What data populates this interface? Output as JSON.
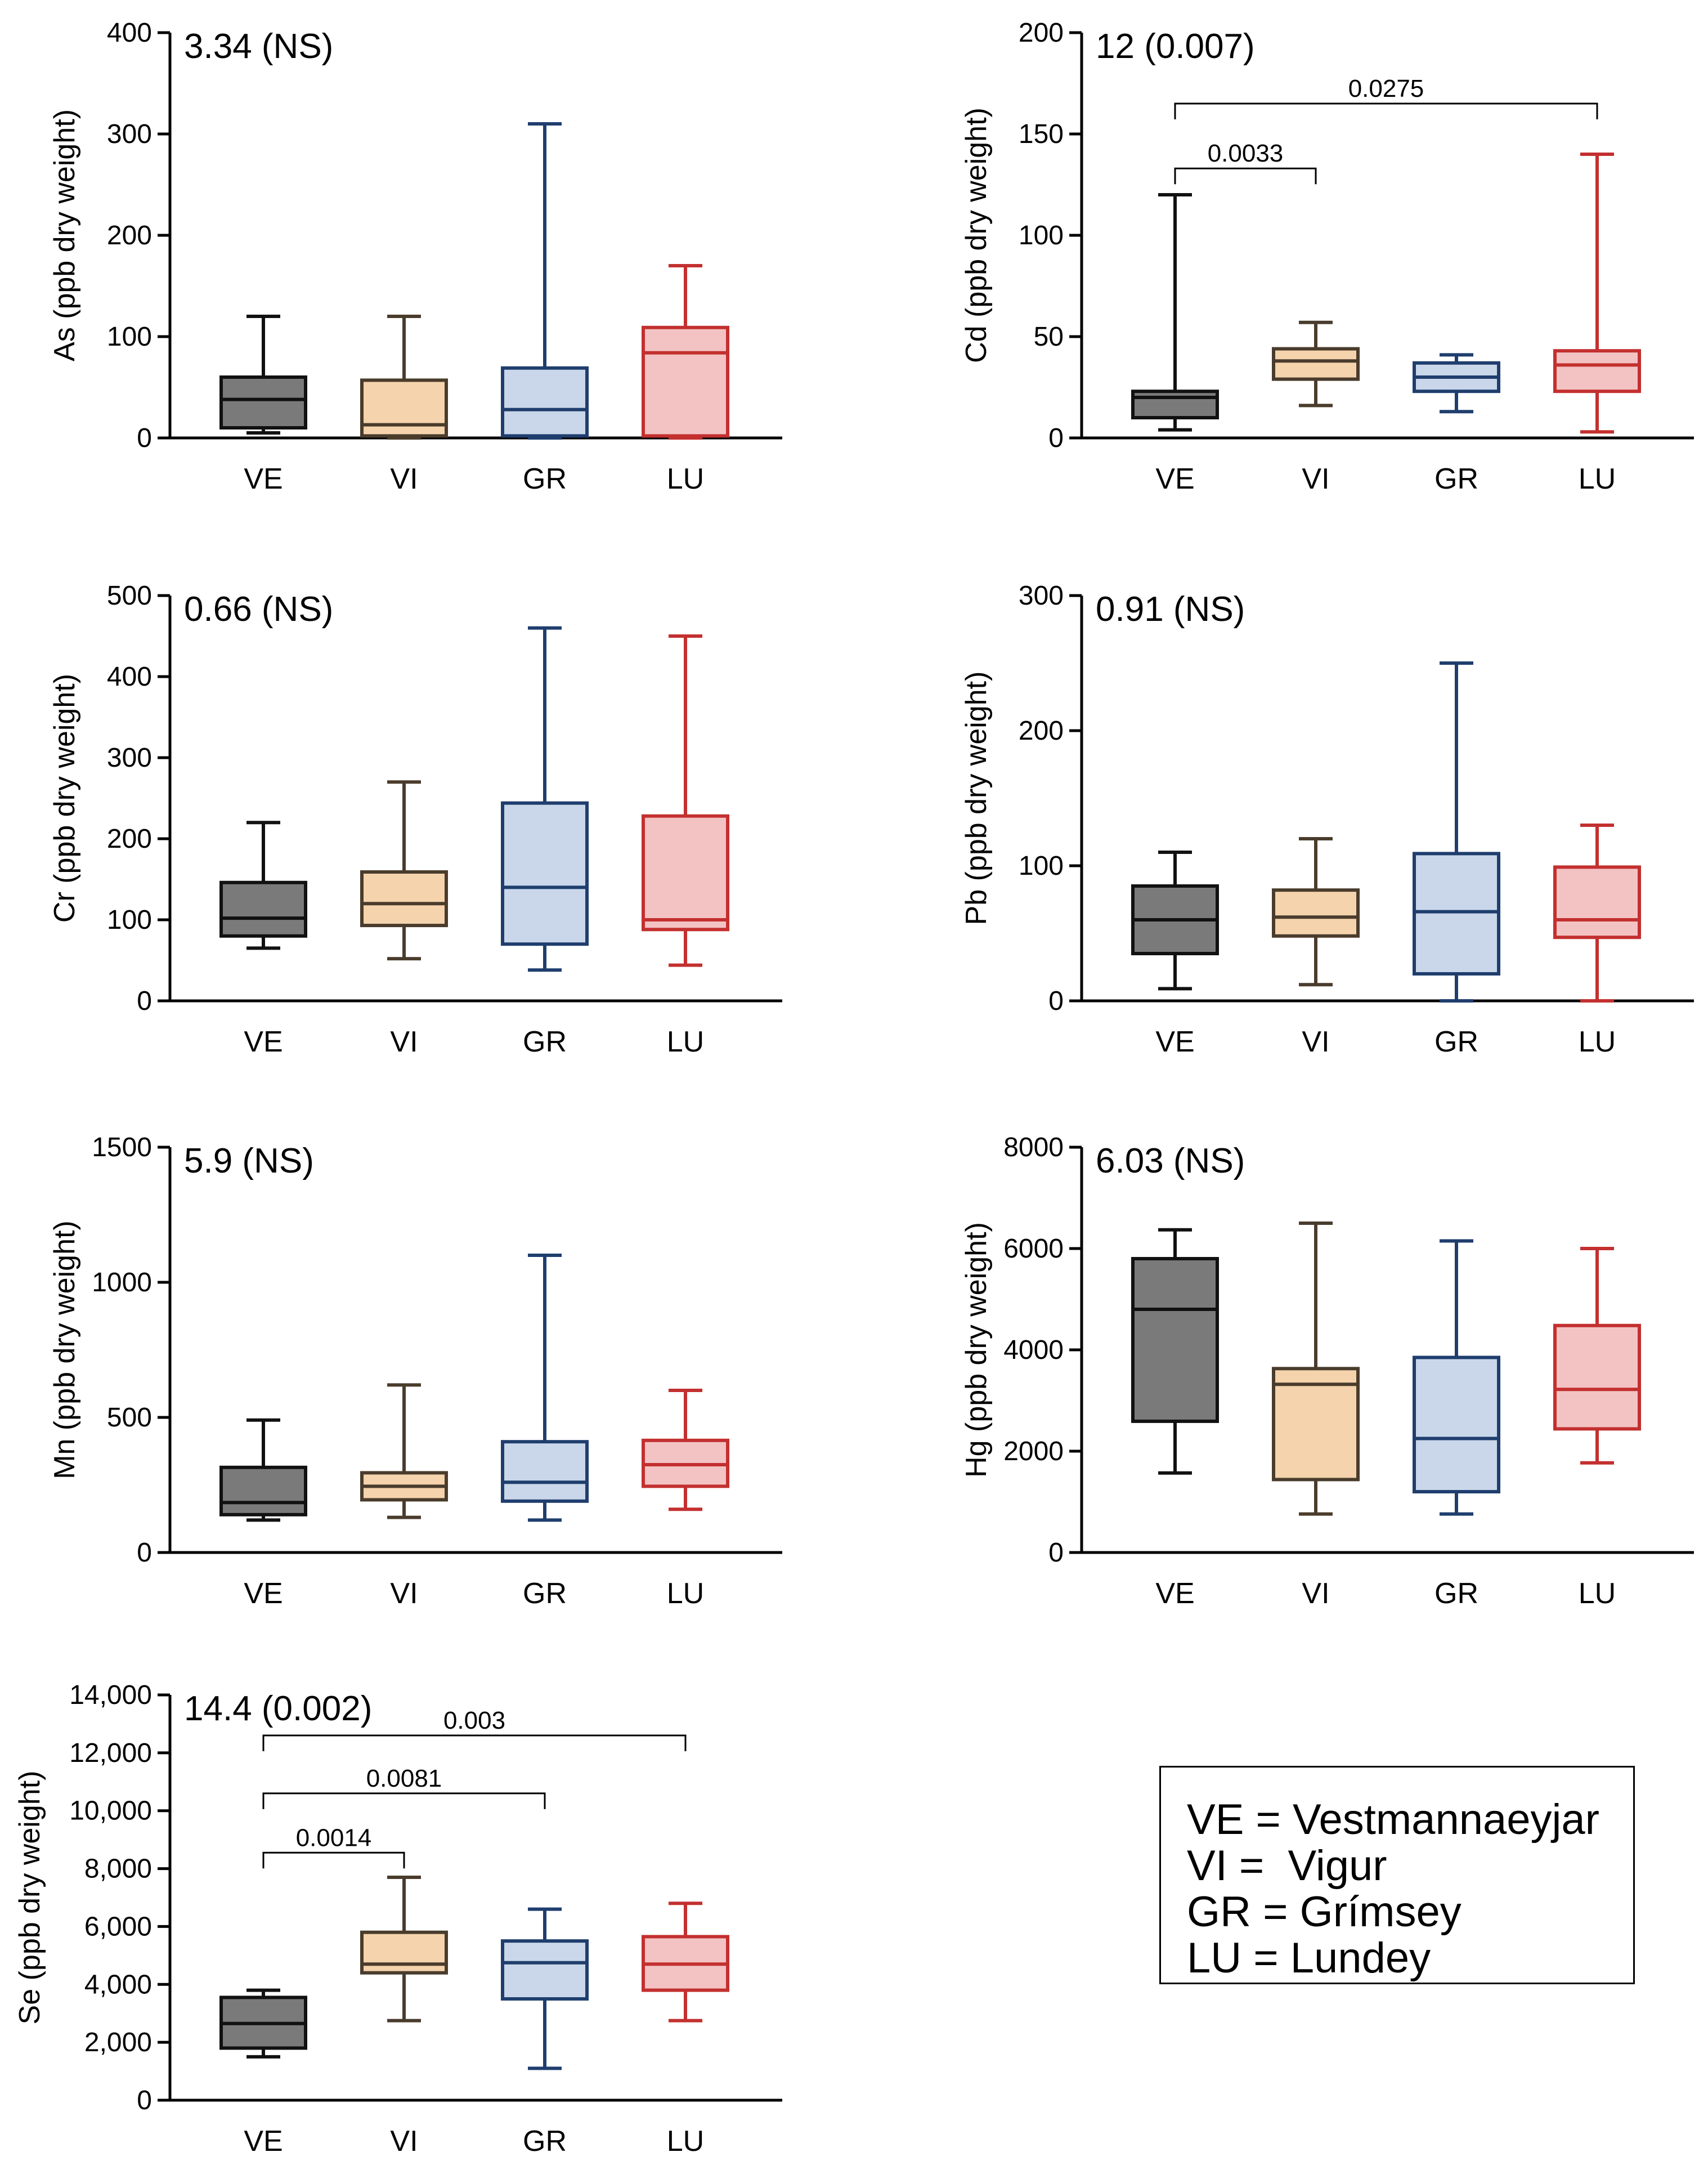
{
  "chart_data": [
    {
      "type": "box",
      "id": "as",
      "ylabel": "As (ppb dry weight)",
      "stat_label": "3.34 (NS)",
      "ylim": [
        0,
        400
      ],
      "yticks": [
        0,
        100,
        200,
        300,
        400
      ],
      "ytick_labels": [
        "0",
        "100",
        "200",
        "300",
        "400"
      ],
      "categories": [
        "VE",
        "VI",
        "GR",
        "LU"
      ],
      "boxes": [
        {
          "min": 5,
          "q1": 10,
          "median": 38,
          "q3": 60,
          "max": 120
        },
        {
          "min": 0,
          "q1": 2,
          "median": 13,
          "q3": 57,
          "max": 120
        },
        {
          "min": 0,
          "q1": 2,
          "median": 28,
          "q3": 69,
          "max": 310
        },
        {
          "min": 0,
          "q1": 2,
          "median": 84,
          "q3": 109,
          "max": 170
        }
      ],
      "comparisons": []
    },
    {
      "type": "box",
      "id": "cd",
      "ylabel": "Cd (ppb dry weight)",
      "stat_label": "12 (0.007)",
      "ylim": [
        0,
        200
      ],
      "yticks": [
        0,
        50,
        100,
        150,
        200
      ],
      "ytick_labels": [
        "0",
        "50",
        "100",
        "150",
        "200"
      ],
      "categories": [
        "VE",
        "VI",
        "GR",
        "LU"
      ],
      "boxes": [
        {
          "min": 4,
          "q1": 10,
          "median": 20,
          "q3": 23,
          "max": 120
        },
        {
          "min": 16,
          "q1": 29,
          "median": 38,
          "q3": 44,
          "max": 57
        },
        {
          "min": 13,
          "q1": 23,
          "median": 30,
          "q3": 37,
          "max": 41
        },
        {
          "min": 3,
          "q1": 23,
          "median": 36,
          "q3": 43,
          "max": 140
        }
      ],
      "comparisons": [
        {
          "from": 0,
          "to": 1,
          "label": "0.0033",
          "y": 133
        },
        {
          "from": 0,
          "to": 3,
          "label": "0.0275",
          "y": 165
        }
      ]
    },
    {
      "type": "box",
      "id": "cr",
      "ylabel": "Cr (ppb dry weight)",
      "stat_label": "0.66 (NS)",
      "ylim": [
        0,
        500
      ],
      "yticks": [
        0,
        100,
        200,
        300,
        400,
        500
      ],
      "ytick_labels": [
        "0",
        "100",
        "200",
        "300",
        "400",
        "500"
      ],
      "categories": [
        "VE",
        "VI",
        "GR",
        "LU"
      ],
      "boxes": [
        {
          "min": 65,
          "q1": 80,
          "median": 102,
          "q3": 146,
          "max": 220
        },
        {
          "min": 52,
          "q1": 93,
          "median": 120,
          "q3": 159,
          "max": 270
        },
        {
          "min": 38,
          "q1": 70,
          "median": 140,
          "q3": 244,
          "max": 460
        },
        {
          "min": 44,
          "q1": 88,
          "median": 100,
          "q3": 228,
          "max": 450
        }
      ],
      "comparisons": []
    },
    {
      "type": "box",
      "id": "pb",
      "ylabel": "Pb (ppb dry weight)",
      "stat_label": "0.91 (NS)",
      "ylim": [
        0,
        300
      ],
      "yticks": [
        0,
        100,
        200,
        300
      ],
      "ytick_labels": [
        "0",
        "100",
        "200",
        "300"
      ],
      "categories": [
        "VE",
        "VI",
        "GR",
        "LU"
      ],
      "boxes": [
        {
          "min": 9,
          "q1": 35,
          "median": 60,
          "q3": 85,
          "max": 110
        },
        {
          "min": 12,
          "q1": 48,
          "median": 62,
          "q3": 82,
          "max": 120
        },
        {
          "min": 0,
          "q1": 20,
          "median": 66,
          "q3": 109,
          "max": 250
        },
        {
          "min": 0,
          "q1": 47,
          "median": 60,
          "q3": 99,
          "max": 130
        }
      ],
      "comparisons": []
    },
    {
      "type": "box",
      "id": "mn",
      "ylabel": "Mn (ppb dry weight)",
      "stat_label": "5.9 (NS)",
      "ylim": [
        0,
        1500
      ],
      "yticks": [
        0,
        500,
        1000,
        1500
      ],
      "ytick_labels": [
        "0",
        "500",
        "1000",
        "1500"
      ],
      "categories": [
        "VE",
        "VI",
        "GR",
        "LU"
      ],
      "boxes": [
        {
          "min": 120,
          "q1": 140,
          "median": 185,
          "q3": 315,
          "max": 490
        },
        {
          "min": 130,
          "q1": 195,
          "median": 245,
          "q3": 295,
          "max": 620
        },
        {
          "min": 120,
          "q1": 190,
          "median": 260,
          "q3": 410,
          "max": 1100
        },
        {
          "min": 160,
          "q1": 245,
          "median": 325,
          "q3": 415,
          "max": 600
        }
      ],
      "comparisons": []
    },
    {
      "type": "box",
      "id": "hg",
      "ylabel": "Hg (ppb dry weight)",
      "stat_label": "6.03 (NS)",
      "ylim": [
        0,
        8000
      ],
      "yticks": [
        0,
        2000,
        4000,
        6000,
        8000
      ],
      "ytick_labels": [
        "0",
        "2000",
        "4000",
        "6000",
        "8000"
      ],
      "categories": [
        "VE",
        "VI",
        "GR",
        "LU"
      ],
      "boxes": [
        {
          "min": 1570,
          "q1": 2590,
          "median": 4800,
          "q3": 5800,
          "max": 6370
        },
        {
          "min": 760,
          "q1": 1440,
          "median": 3320,
          "q3": 3630,
          "max": 6500
        },
        {
          "min": 760,
          "q1": 1200,
          "median": 2250,
          "q3": 3850,
          "max": 6150
        },
        {
          "min": 1770,
          "q1": 2440,
          "median": 3220,
          "q3": 4480,
          "max": 6000
        }
      ],
      "comparisons": []
    },
    {
      "type": "box",
      "id": "se",
      "ylabel": "Se (ppb dry weight)",
      "stat_label": "14.4 (0.002)",
      "ylim": [
        0,
        14000
      ],
      "yticks": [
        0,
        2000,
        4000,
        6000,
        8000,
        10000,
        12000,
        14000
      ],
      "ytick_labels": [
        "0",
        "2,000",
        "4,000",
        "6,000",
        "8,000",
        "10,000",
        "12,000",
        "14,000"
      ],
      "categories": [
        "VE",
        "VI",
        "GR",
        "LU"
      ],
      "boxes": [
        {
          "min": 1500,
          "q1": 1800,
          "median": 2650,
          "q3": 3550,
          "max": 3800
        },
        {
          "min": 2750,
          "q1": 4400,
          "median": 4700,
          "q3": 5800,
          "max": 7700
        },
        {
          "min": 1100,
          "q1": 3500,
          "median": 4750,
          "q3": 5500,
          "max": 6600
        },
        {
          "min": 2750,
          "q1": 3800,
          "median": 4700,
          "q3": 5650,
          "max": 6800
        }
      ],
      "comparisons": [
        {
          "from": 0,
          "to": 1,
          "label": "0.0014",
          "y": 8550
        },
        {
          "from": 0,
          "to": 2,
          "label": "0.0081",
          "y": 10600
        },
        {
          "from": 0,
          "to": 3,
          "label": "0.003",
          "y": 12600
        }
      ]
    }
  ],
  "series_colors": [
    {
      "edge": "#111111",
      "fill": "#7a7a7a"
    },
    {
      "edge": "#4a3c2c",
      "fill": "#f4d3ad"
    },
    {
      "edge": "#1f3e6e",
      "fill": "#cad7ea"
    },
    {
      "edge": "#c3302f",
      "fill": "#f3c3c4"
    }
  ],
  "legend": [
    "VE = Vestmannaeyjar",
    "VI =  Vigur",
    "GR = Grímsey",
    "LU = Lundey"
  ]
}
